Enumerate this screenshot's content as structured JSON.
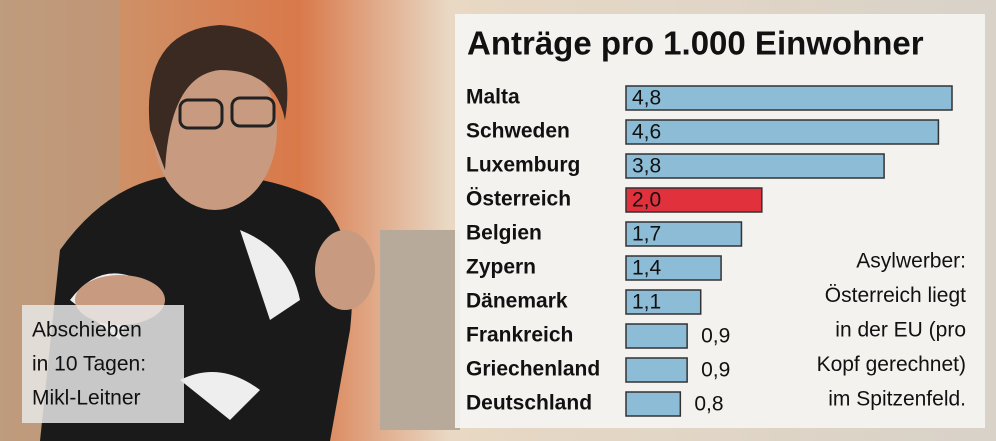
{
  "chart_data": {
    "type": "bar",
    "orientation": "horizontal",
    "title": "Anträge pro 1.000 Einwohner",
    "categories": [
      "Malta",
      "Schweden",
      "Luxemburg",
      "Österreich",
      "Belgien",
      "Zypern",
      "Dänemark",
      "Frankreich",
      "Griechenland",
      "Deutschland"
    ],
    "values": [
      4.8,
      4.6,
      3.8,
      2.0,
      1.7,
      1.4,
      1.1,
      0.9,
      0.9,
      0.8
    ],
    "value_labels": [
      "4,8",
      "4,6",
      "3,8",
      "2,0",
      "1,7",
      "1,4",
      "1,1",
      "0,9",
      "0,9",
      "0,8"
    ],
    "color": "#8dbcd6",
    "highlight": {
      "category": "Österreich",
      "color": "#e0313c"
    },
    "annotation": [
      "Asylwerber:",
      "Österreich liegt",
      "in der EU (pro",
      "Kopf gerechnet)",
      "im Spitzenfeld."
    ]
  },
  "caption": [
    "Abschieben",
    "in 10 Tagen:",
    "Mikl-Leitner"
  ]
}
